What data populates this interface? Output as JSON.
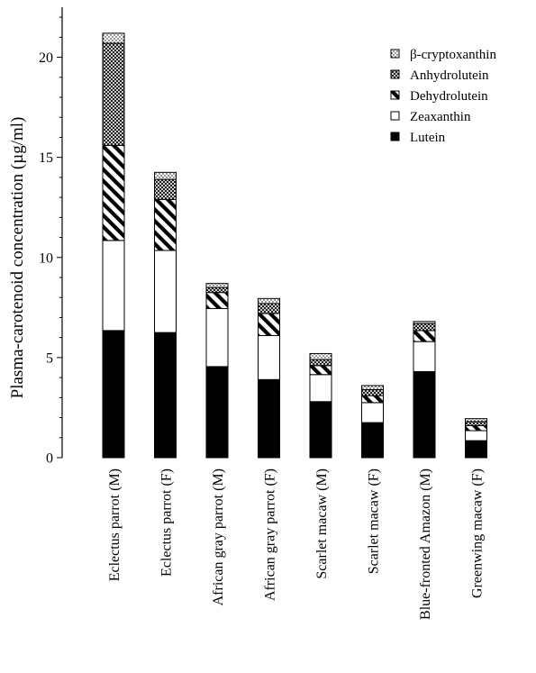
{
  "chart_data": {
    "type": "bar",
    "stacked": true,
    "title": "",
    "xlabel": "",
    "ylabel": "Plasma-carotenoid concentration (µg/ml)",
    "ylim": [
      0,
      22
    ],
    "yticks": [
      0,
      5,
      10,
      15,
      20
    ],
    "grid": false,
    "legend_position": "top-right",
    "categories": [
      "Eclectus parrot (M)",
      "Eclectus parrot (F)",
      "African gray parrot (M)",
      "African gray parrot (F)",
      "Scarlet macaw (M)",
      "Scarlet macaw (F)",
      "Blue-fronted Amazon (M)",
      "Greenwing macaw (F)"
    ],
    "series": [
      {
        "name": "Lutein",
        "pattern": "solid",
        "values": [
          6.35,
          6.25,
          4.55,
          3.9,
          2.8,
          1.75,
          4.3,
          0.85
        ]
      },
      {
        "name": "Zeaxanthin",
        "pattern": "white",
        "values": [
          4.5,
          4.1,
          2.9,
          2.2,
          1.35,
          1.0,
          1.5,
          0.5
        ]
      },
      {
        "name": "Dehydrolutein",
        "pattern": "diagonal",
        "values": [
          4.75,
          2.55,
          0.8,
          1.1,
          0.45,
          0.35,
          0.55,
          0.25
        ]
      },
      {
        "name": "Anhydrolutein",
        "pattern": "crosshatch",
        "values": [
          5.1,
          1.0,
          0.25,
          0.5,
          0.3,
          0.3,
          0.35,
          0.2
        ]
      },
      {
        "name": "β-cryptoxanthin",
        "pattern": "dots",
        "values": [
          0.5,
          0.35,
          0.2,
          0.25,
          0.3,
          0.2,
          0.1,
          0.15
        ]
      }
    ],
    "legend_order": [
      "β-cryptoxanthin",
      "Anhydrolutein",
      "Dehydrolutein",
      "Zeaxanthin",
      "Lutein"
    ]
  }
}
